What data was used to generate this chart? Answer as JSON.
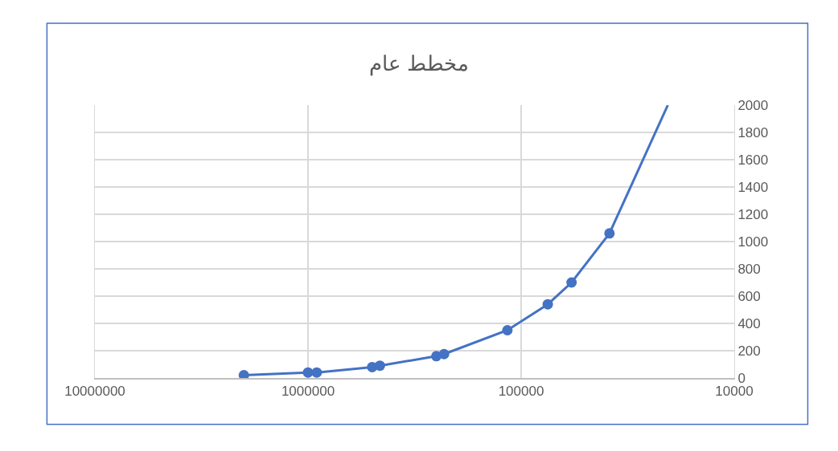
{
  "chart_data": {
    "type": "line",
    "title": "مخطط عام",
    "series": [
      {
        "color": "#4472c4",
        "marker": "circle",
        "x": [
          2000000,
          1000000,
          910000,
          500000,
          460000,
          250000,
          230000,
          116000,
          75000,
          58000,
          38500
        ],
        "values": [
          20,
          40,
          40,
          80,
          90,
          160,
          175,
          350,
          540,
          700,
          1060
        ]
      },
      {
        "color": "#4472c4",
        "marker": "none",
        "x": [
          38500,
          20500
        ],
        "values": [
          1060,
          2000
        ]
      }
    ],
    "log": "x",
    "xlim": [
      10000000,
      10000
    ],
    "xticks": [
      10000000,
      1000000,
      100000,
      10000
    ],
    "ylim": [
      0,
      2000
    ],
    "yticks": [
      0,
      200,
      400,
      600,
      800,
      1000,
      1200,
      1400,
      1600,
      1800,
      2000
    ],
    "grid": true
  }
}
